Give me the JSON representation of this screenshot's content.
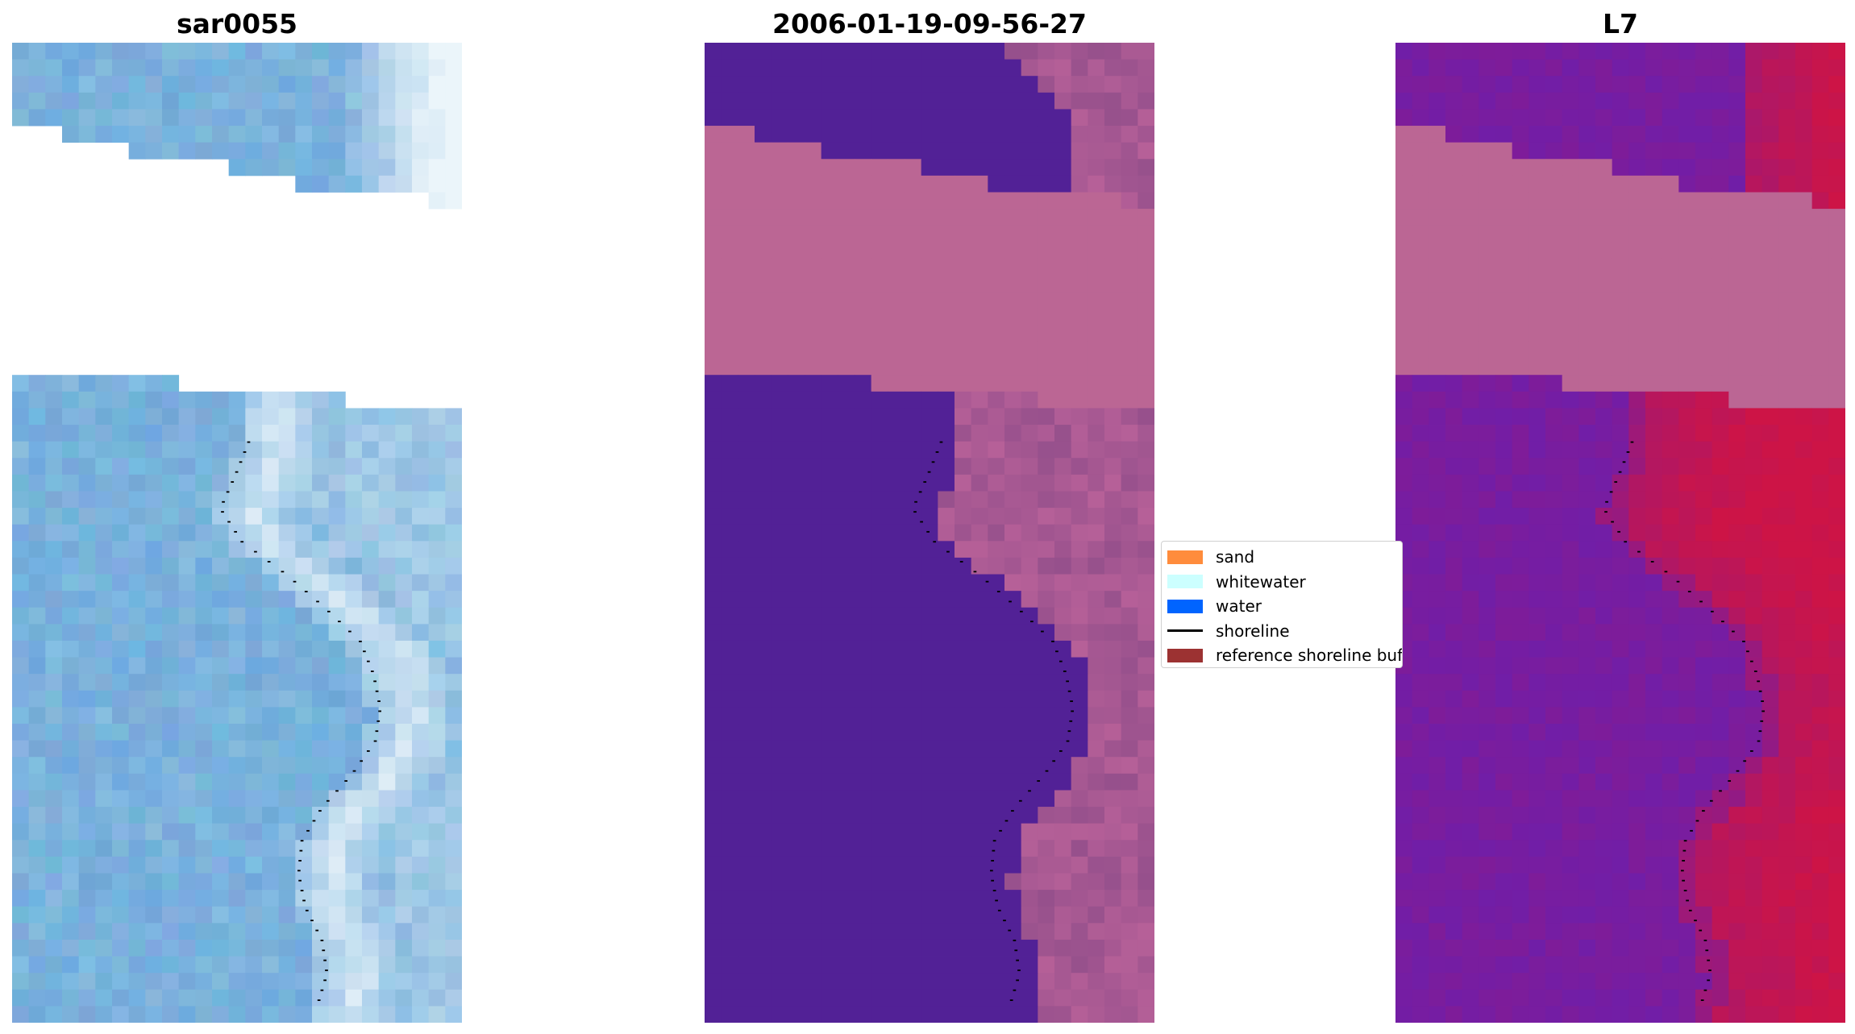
{
  "panels": [
    {
      "title": "sar0055",
      "key": "rgb"
    },
    {
      "title": "2006-01-19-09-56-27",
      "key": "classified"
    },
    {
      "title": "L7",
      "key": "mndwi"
    }
  ],
  "legend": {
    "items": [
      {
        "label": "sand",
        "color": "#ff8c3c",
        "kind": "patch"
      },
      {
        "label": "whitewater",
        "color": "#ccffff",
        "kind": "patch"
      },
      {
        "label": "water",
        "color": "#0064ff",
        "kind": "patch"
      },
      {
        "label": "shoreline",
        "color": "#000000",
        "kind": "line"
      },
      {
        "label": "reference shoreline buffer",
        "color": "#9c3232",
        "kind": "patch"
      }
    ]
  },
  "colors": {
    "rgb_water": "#70a8d8",
    "rgb_white": "#e8f4ff",
    "class_water": "#522196",
    "class_mask": "#bb6694",
    "index_water": "#7a2aa2",
    "index_land": "#c8184a",
    "index_mask": "#bb6694",
    "shoreline": "#000000"
  }
}
